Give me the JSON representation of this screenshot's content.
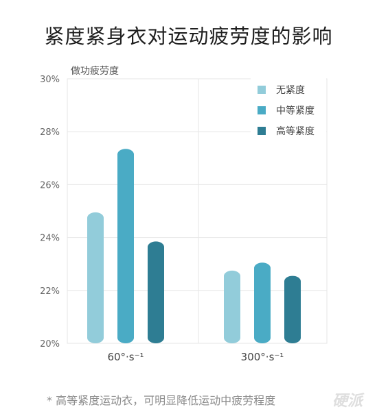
{
  "chart_data": {
    "type": "bar",
    "title": "紧度紧身衣对运动疲劳度的影响",
    "ylabel": "做功疲劳度",
    "xlabel": "",
    "categories": [
      "60°·s⁻¹",
      "300°·s⁻¹"
    ],
    "series": [
      {
        "name": "无紧度",
        "color": "#92ccda",
        "values": [
          24.95,
          22.75
        ]
      },
      {
        "name": "中等紧度",
        "color": "#4aabc5",
        "values": [
          27.35,
          23.05
        ]
      },
      {
        "name": "高等紧度",
        "color": "#2e7d93",
        "values": [
          23.85,
          22.55
        ]
      }
    ],
    "ylim": [
      20,
      30
    ],
    "yticks": [
      "20%",
      "22%",
      "24%",
      "26%",
      "28%",
      "30%"
    ],
    "grid": true,
    "legend": "top-right"
  },
  "footnote": "* 高等紧度运动衣，可明显降低运动中疲劳程度",
  "watermark": "硬派"
}
